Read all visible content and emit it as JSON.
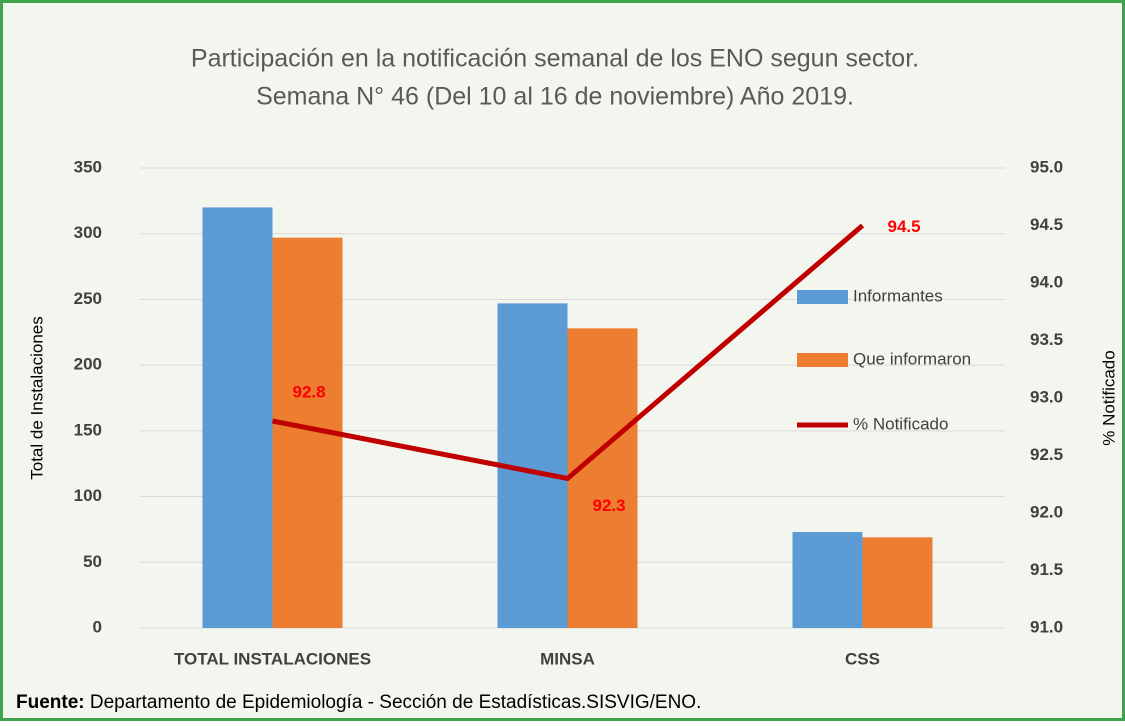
{
  "chart_data": {
    "type": "bar_line",
    "title": [
      "Participación en la notificación semanal  de los ENO segun sector.",
      "Semana N° 46 (Del 10 al 16 de noviembre) Año 2019."
    ],
    "categories": [
      "TOTAL INSTALACIONES",
      "MINSA",
      "CSS"
    ],
    "series": [
      {
        "name": "Informantes",
        "color": "#5b9bd5",
        "type": "bar",
        "values": [
          320,
          247,
          73
        ]
      },
      {
        "name": "Que informaron",
        "color": "#ed7d31",
        "type": "bar",
        "values": [
          297,
          228,
          69
        ]
      },
      {
        "name": "% Notificado",
        "color": "#c00000",
        "type": "line",
        "axis": "y2",
        "values": [
          92.8,
          92.3,
          94.5
        ]
      }
    ],
    "ylabel": "Total de Instalaciones",
    "y2label": "% Notificado",
    "ylim": [
      0,
      350
    ],
    "yticks": [
      0,
      50,
      100,
      150,
      200,
      250,
      300,
      350
    ],
    "y2lim": [
      91,
      95
    ],
    "y2ticks": [
      {
        "value": 91,
        "label": "91.0"
      },
      91.5,
      {
        "value": 92,
        "label": "92.0"
      },
      92.5,
      {
        "value": 93,
        "label": "93.0"
      },
      93.5,
      {
        "value": 94,
        "label": "94.0"
      },
      94.5,
      {
        "value": 95,
        "label": "95.0"
      }
    ],
    "grid": true,
    "legend": "right"
  },
  "footer": {
    "label": "Fuente:",
    "text": " Departamento de Epidemiología - Sección de Estadísticas.SISVIG/ENO."
  }
}
